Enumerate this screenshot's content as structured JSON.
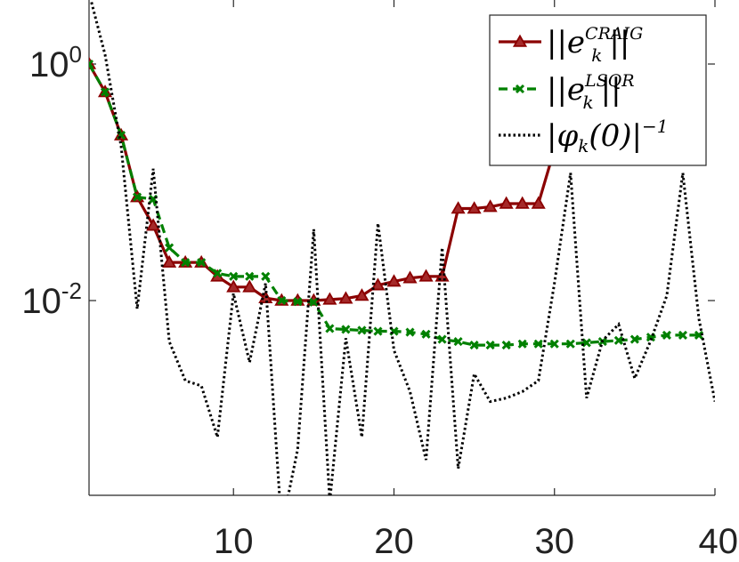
{
  "chart_data": {
    "type": "line",
    "title": "",
    "xlabel": "",
    "ylabel": "",
    "xlim": [
      1,
      40
    ],
    "ylim": [
      0.0001,
      3
    ],
    "yscale": "log",
    "grid": false,
    "legend_position": "top-right",
    "x_ticks": [
      "10",
      "20",
      "30",
      "40"
    ],
    "y_ticks": [
      {
        "value": 1,
        "base": "10",
        "exp": "0"
      },
      {
        "value": 0.01,
        "base": "10",
        "exp": "-2"
      }
    ],
    "series": [
      {
        "name": "||e_k^CRAIG||",
        "color": "#8b0000",
        "marker": "triangle",
        "line": "solid",
        "x": [
          1,
          2,
          3,
          4,
          5,
          6,
          7,
          8,
          9,
          10,
          11,
          12,
          13,
          14,
          15,
          16,
          17,
          18,
          19,
          20,
          21,
          22,
          23,
          24,
          25,
          26,
          27,
          28,
          29,
          30,
          31,
          32,
          33,
          34,
          35,
          36,
          37,
          38,
          39
        ],
        "y": [
          1.0,
          0.58,
          0.25,
          0.075,
          0.043,
          0.021,
          0.021,
          0.021,
          0.016,
          0.013,
          0.013,
          0.0105,
          0.01,
          0.01,
          0.01,
          0.0102,
          0.0104,
          0.011,
          0.0135,
          0.0145,
          0.0155,
          0.016,
          0.016,
          0.06,
          0.06,
          0.062,
          0.066,
          0.066,
          0.066,
          0.19,
          0.19,
          0.2,
          0.2,
          0.2,
          0.2,
          0.22,
          0.22,
          0.23,
          0.24
        ]
      },
      {
        "name": "||e_k^LSQR||",
        "color": "#008000",
        "marker": "x",
        "line": "dashed",
        "x": [
          1,
          2,
          3,
          4,
          5,
          6,
          7,
          8,
          9,
          10,
          11,
          12,
          13,
          14,
          15,
          16,
          17,
          18,
          19,
          20,
          21,
          22,
          23,
          24,
          25,
          26,
          27,
          28,
          29,
          30,
          31,
          32,
          33,
          34,
          35,
          36,
          37,
          38,
          39
        ],
        "y": [
          1.0,
          0.58,
          0.25,
          0.075,
          0.072,
          0.028,
          0.021,
          0.021,
          0.017,
          0.016,
          0.016,
          0.016,
          0.01,
          0.0098,
          0.0097,
          0.0058,
          0.0057,
          0.0056,
          0.0055,
          0.0055,
          0.0054,
          0.0052,
          0.0047,
          0.0045,
          0.0042,
          0.0042,
          0.0042,
          0.0043,
          0.0043,
          0.0043,
          0.0043,
          0.0044,
          0.0045,
          0.0046,
          0.0047,
          0.0049,
          0.0051,
          0.0051,
          0.0051
        ]
      },
      {
        "name": "|φ_k(0)|^-1",
        "color": "#000000",
        "marker": "none",
        "line": "dotted",
        "x": [
          1,
          2,
          3,
          4,
          5,
          6,
          7,
          8,
          9,
          10,
          11,
          12,
          13,
          14,
          15,
          16,
          17,
          18,
          19,
          20,
          21,
          22,
          23,
          24,
          25,
          26,
          27,
          28,
          29,
          30,
          31,
          32,
          33,
          34,
          35,
          36,
          37,
          38,
          39,
          40
        ],
        "y": [
          4.0,
          1.2,
          0.2,
          0.0085,
          0.13,
          0.0045,
          0.0021,
          0.0019,
          0.0007,
          0.0115,
          0.003,
          0.014,
          0.00012,
          0.00055,
          0.04,
          0.0002,
          0.0048,
          0.0007,
          0.045,
          0.0038,
          0.0017,
          0.00045,
          0.028,
          0.00038,
          0.0024,
          0.0014,
          0.0015,
          0.0017,
          0.0021,
          0.014,
          0.12,
          0.0015,
          0.0046,
          0.0063,
          0.0022,
          0.0046,
          0.011,
          0.12,
          0.007,
          0.0014
        ]
      }
    ]
  },
  "legend": {
    "entries": [
      {
        "pre": "||e",
        "sub": "k",
        "sup": "CRAIG",
        "post": "||"
      },
      {
        "pre": "||e",
        "sub": "k",
        "sup": "LSQR",
        "post": "||"
      },
      {
        "pre": "|φ",
        "sub": "k",
        "mid": "(0)|",
        "sup": "−1",
        "post": ""
      }
    ]
  }
}
